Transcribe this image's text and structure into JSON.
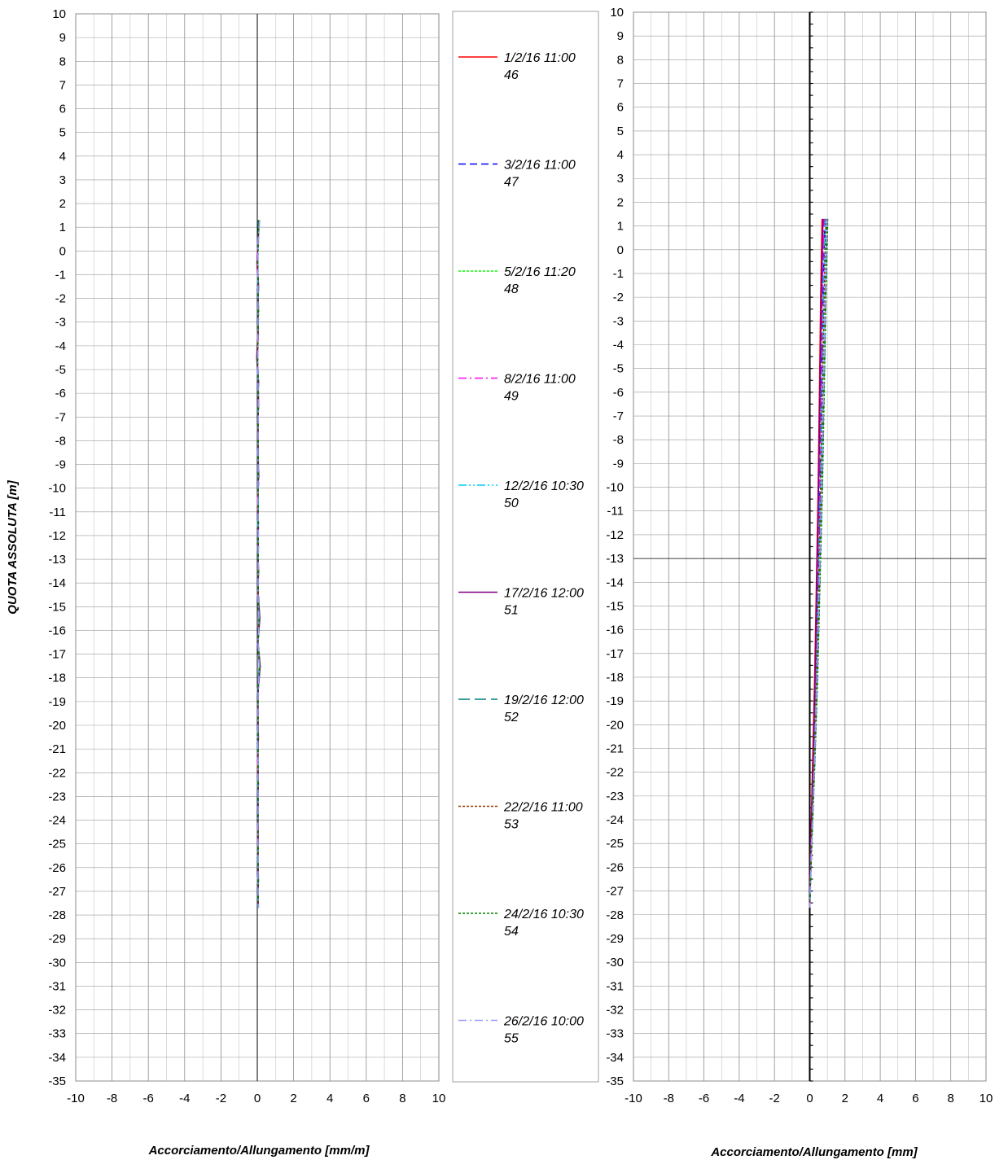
{
  "chart_data": [
    {
      "type": "line",
      "orientation": "vertical-profile",
      "xlabel": "Accorciamento/Allungamento [mm/m]",
      "ylabel": "QUOTA ASSOLUTA [m]",
      "xlim": [
        -10,
        10
      ],
      "ylim": [
        -35,
        10
      ],
      "x_ticks": [
        -10,
        -8,
        -6,
        -4,
        -2,
        0,
        2,
        4,
        6,
        8,
        10
      ],
      "y_ticks": [
        10,
        9,
        8,
        7,
        6,
        5,
        4,
        3,
        2,
        1,
        0,
        -1,
        -2,
        -3,
        -4,
        -5,
        -6,
        -7,
        -8,
        -9,
        -10,
        -11,
        -12,
        -13,
        -14,
        -15,
        -16,
        -17,
        -18,
        -19,
        -20,
        -21,
        -22,
        -23,
        -24,
        -25,
        -26,
        -27,
        -28,
        -29,
        -30,
        -31,
        -32,
        -33,
        -34,
        -35
      ],
      "grid": true,
      "depths": [
        1.3,
        0.5,
        -0.5,
        -1.5,
        -2.5,
        -3.5,
        -4.5,
        -5.5,
        -6.5,
        -7.5,
        -8.5,
        -9.5,
        -10.5,
        -11.5,
        -12.5,
        -13.5,
        -14.5,
        -15.5,
        -16.5,
        -17.5,
        -18.5,
        -19.5,
        -20.5,
        -21.5,
        -22.5,
        -23.5,
        -24.5,
        -25.5,
        -26.5,
        -27.7
      ],
      "series": [
        {
          "name": "1/2/16 11:00 46",
          "values": [
            0.08,
            0.05,
            -0.02,
            0.04,
            0.06,
            0.02,
            -0.03,
            0.05,
            0.07,
            0.02,
            0.04,
            0.06,
            0.01,
            0.05,
            0.03,
            0.07,
            0.02,
            0.1,
            0.03,
            0.12,
            0.04,
            0.02,
            0.06,
            0.01,
            0.04,
            0.05,
            0.02,
            0.03,
            0.06,
            0.04
          ]
        },
        {
          "name": "3/2/16 11:00 47",
          "values": [
            0.1,
            0.04,
            0.01,
            0.06,
            0.03,
            0.05,
            0.0,
            0.07,
            0.04,
            0.05,
            0.02,
            0.08,
            0.03,
            0.06,
            0.05,
            0.04,
            0.06,
            0.12,
            0.01,
            0.14,
            0.05,
            0.03,
            0.04,
            0.03,
            0.06,
            0.02,
            0.05,
            0.04,
            0.03,
            0.06
          ]
        },
        {
          "name": "5/2/16 11:20 48",
          "values": [
            0.06,
            0.07,
            0.02,
            0.03,
            0.08,
            0.04,
            0.03,
            0.04,
            0.06,
            0.03,
            0.06,
            0.04,
            0.05,
            0.03,
            0.07,
            0.03,
            0.05,
            0.09,
            0.04,
            0.11,
            0.03,
            0.05,
            0.03,
            0.05,
            0.02,
            0.06,
            0.04,
            0.02,
            0.05,
            0.03
          ]
        },
        {
          "name": "8/2/16 11:00 49",
          "values": [
            0.12,
            0.03,
            -0.01,
            0.05,
            0.04,
            0.06,
            0.01,
            0.03,
            0.05,
            0.06,
            0.03,
            0.05,
            0.04,
            0.04,
            0.02,
            0.06,
            0.04,
            0.13,
            0.02,
            0.15,
            0.06,
            0.04,
            0.05,
            0.02,
            0.05,
            0.03,
            0.06,
            0.05,
            0.04,
            0.05
          ]
        },
        {
          "name": "12/2/16 10:30 50",
          "values": [
            0.09,
            0.06,
            0.03,
            0.02,
            0.05,
            0.03,
            0.02,
            0.06,
            0.03,
            0.04,
            0.05,
            0.03,
            0.06,
            0.02,
            0.04,
            0.05,
            0.03,
            0.08,
            0.05,
            0.1,
            0.02,
            0.06,
            0.02,
            0.04,
            0.03,
            0.04,
            0.03,
            0.06,
            0.02,
            0.04
          ]
        },
        {
          "name": "17/2/16 12:00 51",
          "values": [
            0.11,
            0.04,
            0.0,
            0.07,
            0.02,
            0.05,
            -0.02,
            0.05,
            0.06,
            0.03,
            0.05,
            0.07,
            0.02,
            0.06,
            0.04,
            0.06,
            0.05,
            0.14,
            0.03,
            0.16,
            0.04,
            0.03,
            0.06,
            0.03,
            0.05,
            0.04,
            0.03,
            0.04,
            0.05,
            0.05
          ]
        },
        {
          "name": "19/2/16 12:00 52",
          "values": [
            0.07,
            0.05,
            0.02,
            0.04,
            0.06,
            0.04,
            0.01,
            0.04,
            0.05,
            0.05,
            0.03,
            0.05,
            0.04,
            0.05,
            0.03,
            0.05,
            0.04,
            0.11,
            0.04,
            0.13,
            0.05,
            0.04,
            0.04,
            0.04,
            0.04,
            0.05,
            0.04,
            0.03,
            0.04,
            0.04
          ]
        },
        {
          "name": "22/2/16 11:00 53",
          "values": [
            0.1,
            0.06,
            0.01,
            0.05,
            0.05,
            0.03,
            0.02,
            0.05,
            0.04,
            0.04,
            0.04,
            0.06,
            0.03,
            0.04,
            0.05,
            0.04,
            0.05,
            0.1,
            0.03,
            0.12,
            0.03,
            0.05,
            0.05,
            0.03,
            0.05,
            0.03,
            0.05,
            0.05,
            0.03,
            0.05
          ]
        },
        {
          "name": "24/2/16 10:30 54",
          "values": [
            0.08,
            0.04,
            0.03,
            0.06,
            0.03,
            0.06,
            0.0,
            0.06,
            0.05,
            0.04,
            0.05,
            0.04,
            0.05,
            0.05,
            0.04,
            0.06,
            0.03,
            0.12,
            0.05,
            0.14,
            0.04,
            0.03,
            0.04,
            0.05,
            0.03,
            0.04,
            0.04,
            0.04,
            0.06,
            0.03
          ]
        },
        {
          "name": "26/2/16 10:00 55",
          "values": [
            0.13,
            0.05,
            0.02,
            0.04,
            0.04,
            0.04,
            0.03,
            0.04,
            0.06,
            0.05,
            0.04,
            0.05,
            0.03,
            0.05,
            0.06,
            0.05,
            0.04,
            0.09,
            0.04,
            0.11,
            0.05,
            0.04,
            0.03,
            0.04,
            0.04,
            0.05,
            0.03,
            0.05,
            0.04,
            0.06
          ]
        }
      ]
    },
    {
      "type": "line",
      "orientation": "vertical-profile",
      "xlabel": "Accorciamento/Allungamento [mm]",
      "ylabel": "",
      "xlim": [
        -10,
        10
      ],
      "ylim": [
        -35,
        10
      ],
      "x_ticks": [
        -10,
        -8,
        -6,
        -4,
        -2,
        0,
        2,
        4,
        6,
        8,
        10
      ],
      "y_ticks": [
        10,
        9,
        8,
        7,
        6,
        5,
        4,
        3,
        2,
        1,
        0,
        -1,
        -2,
        -3,
        -4,
        -5,
        -6,
        -7,
        -8,
        -9,
        -10,
        -11,
        -12,
        -13,
        -14,
        -15,
        -16,
        -17,
        -18,
        -19,
        -20,
        -21,
        -22,
        -23,
        -24,
        -25,
        -26,
        -27,
        -28,
        -29,
        -30,
        -31,
        -32,
        -33,
        -34,
        -35
      ],
      "grid": true,
      "depths": [
        1.3,
        -2.0,
        -6.0,
        -10.0,
        -14.0,
        -18.0,
        -22.0,
        -25.0,
        -27.7
      ],
      "series": [
        {
          "name": "1/2/16 11:00 46",
          "values": [
            0.7,
            0.62,
            0.55,
            0.48,
            0.38,
            0.28,
            0.15,
            0.06,
            0.0
          ]
        },
        {
          "name": "3/2/16 11:00 47",
          "values": [
            0.85,
            0.75,
            0.66,
            0.58,
            0.46,
            0.35,
            0.2,
            0.08,
            0.0
          ]
        },
        {
          "name": "5/2/16 11:20 48",
          "values": [
            0.95,
            0.85,
            0.75,
            0.65,
            0.52,
            0.4,
            0.24,
            0.1,
            0.0
          ]
        },
        {
          "name": "8/2/16 11:00 49",
          "values": [
            0.8,
            0.7,
            0.62,
            0.54,
            0.43,
            0.32,
            0.18,
            0.07,
            0.0
          ]
        },
        {
          "name": "12/2/16 10:30 50",
          "values": [
            0.88,
            0.78,
            0.69,
            0.6,
            0.48,
            0.36,
            0.21,
            0.09,
            0.0
          ]
        },
        {
          "name": "17/2/16 12:00 51",
          "values": [
            0.75,
            0.66,
            0.58,
            0.5,
            0.4,
            0.3,
            0.17,
            0.07,
            0.0
          ]
        },
        {
          "name": "19/2/16 12:00 52",
          "values": [
            1.0,
            0.9,
            0.8,
            0.7,
            0.56,
            0.43,
            0.26,
            0.11,
            0.0
          ]
        },
        {
          "name": "22/2/16 11:00 53",
          "values": [
            0.92,
            0.82,
            0.72,
            0.62,
            0.5,
            0.38,
            0.22,
            0.09,
            0.0
          ]
        },
        {
          "name": "24/2/16 10:30 54",
          "values": [
            1.02,
            0.92,
            0.82,
            0.72,
            0.58,
            0.45,
            0.27,
            0.12,
            0.0
          ]
        },
        {
          "name": "26/2/16 10:00 55",
          "values": [
            0.98,
            0.88,
            0.78,
            0.68,
            0.54,
            0.41,
            0.25,
            0.1,
            0.0
          ]
        }
      ]
    }
  ],
  "legend": {
    "placement": "between-charts",
    "items": [
      {
        "label": "1/2/16 11:00",
        "number": "46",
        "color": "#ff0000",
        "style": "solid"
      },
      {
        "label": "3/2/16 11:00",
        "number": "47",
        "color": "#0000ff",
        "style": "dash"
      },
      {
        "label": "5/2/16 11:20",
        "number": "48",
        "color": "#00ff00",
        "style": "dot"
      },
      {
        "label": "8/2/16 11:00",
        "number": "49",
        "color": "#ff00ff",
        "style": "dashdot"
      },
      {
        "label": "12/2/16 10:30",
        "number": "50",
        "color": "#00ccff",
        "style": "dashdotdot"
      },
      {
        "label": "17/2/16 12:00",
        "number": "51",
        "color": "#800080",
        "style": "solid"
      },
      {
        "label": "19/2/16 12:00",
        "number": "52",
        "color": "#008080",
        "style": "longdash"
      },
      {
        "label": "22/2/16 11:00",
        "number": "53",
        "color": "#993300",
        "style": "dot"
      },
      {
        "label": "24/2/16 10:30",
        "number": "54",
        "color": "#008000",
        "style": "dot"
      },
      {
        "label": "26/2/16 10:00",
        "number": "55",
        "color": "#9999ff",
        "style": "dashdot"
      }
    ]
  }
}
